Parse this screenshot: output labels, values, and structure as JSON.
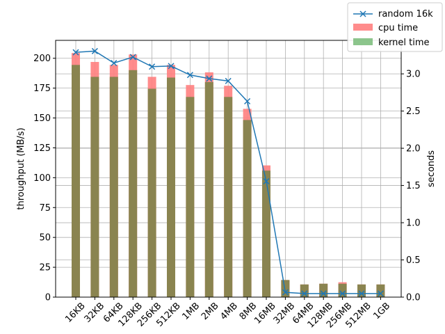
{
  "chart_data": {
    "type": "bar",
    "categories": [
      "16KB",
      "32KB",
      "64KB",
      "128KB",
      "256KB",
      "512KB",
      "1MB",
      "2MB",
      "4MB",
      "8MB",
      "16MB",
      "32MB",
      "64MB",
      "128MB",
      "256MB",
      "512MB",
      "1GB"
    ],
    "ylabel": "throughput (MB/s)",
    "y2label": "seconds",
    "ylim": [
      0,
      215
    ],
    "y2lim": [
      0,
      3.45
    ],
    "yticks": [
      0,
      25,
      50,
      75,
      100,
      125,
      150,
      175,
      200
    ],
    "y2ticks": [
      "0.0",
      "0.5",
      "1.0",
      "1.5",
      "2.0",
      "2.5",
      "3.0"
    ],
    "grid": true,
    "legend_position": "top-right",
    "series": [
      {
        "name": "random 16k",
        "kind": "line",
        "axis": "left",
        "color": "#1f77b4",
        "marker": "x",
        "values": [
          205,
          206,
          196,
          201,
          193,
          193.5,
          186,
          183,
          181,
          164,
          97,
          4,
          3,
          3,
          3,
          3,
          3
        ]
      },
      {
        "name": "cpu time",
        "kind": "bar",
        "axis": "right",
        "color": "#ff7f7f",
        "values": [
          3.28,
          3.16,
          3.12,
          3.26,
          2.96,
          3.12,
          2.85,
          3.02,
          2.84,
          2.53,
          1.77,
          0.23,
          0.17,
          0.18,
          0.2,
          0.17,
          0.17
        ]
      },
      {
        "name": "kernel time",
        "kind": "bar",
        "axis": "right",
        "color": "#7fbf7f",
        "values": [
          3.12,
          2.96,
          2.96,
          3.05,
          2.8,
          2.95,
          2.69,
          2.89,
          2.69,
          2.38,
          1.7,
          0.23,
          0.17,
          0.18,
          0.18,
          0.17,
          0.17
        ]
      }
    ]
  }
}
